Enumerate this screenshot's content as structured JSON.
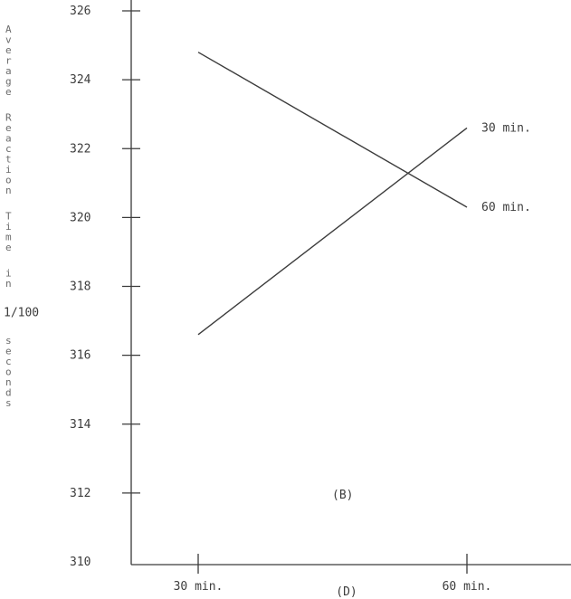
{
  "chart_data": {
    "type": "line",
    "ylabel": [
      "Average",
      "Reaction",
      "Time",
      "in",
      "1/100",
      "seconds"
    ],
    "xlabel": "(D)",
    "annotation": "(B)",
    "categories": [
      "30 min.",
      "60 min."
    ],
    "ylim": [
      310,
      326
    ],
    "yticks": [
      310,
      312,
      314,
      316,
      318,
      320,
      322,
      324,
      326
    ],
    "ytick_labels": [
      "310",
      "312",
      "314",
      "316",
      "318",
      "320",
      "322",
      "324",
      "326"
    ],
    "series": [
      {
        "name": "30 min.",
        "values": [
          316.6,
          322.6
        ]
      },
      {
        "name": "60 min.",
        "values": [
          324.8,
          320.3
        ]
      }
    ],
    "grid": false,
    "legend": "line-end labels"
  }
}
